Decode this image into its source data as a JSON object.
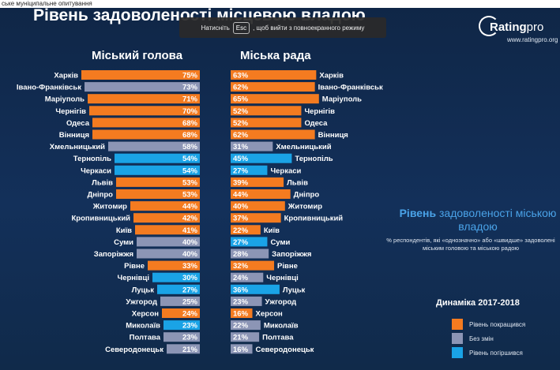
{
  "top_bar": {
    "text": "ське муніципальне опитування"
  },
  "page": {
    "title": "Рівень задоволеності місцевою владою"
  },
  "fullscreen_toast": {
    "before": "Натисніть",
    "key": "Esc",
    "after": ", щоб вийти з повноекранного режиму"
  },
  "logo": {
    "brand_bold": "Rating",
    "brand_light": "pro",
    "url": "www.ratingpro.org"
  },
  "colors": {
    "improved": "#f47b20",
    "no_change": "#8c95b5",
    "worsened": "#1aa3e6",
    "background": "#13305a"
  },
  "chart_data": {
    "type": "bar",
    "categories": [
      "Харків",
      "Івано-Франківськ",
      "Маріуполь",
      "Чернігів",
      "Одеса",
      "Вінниця",
      "Хмельницький",
      "Тернопіль",
      "Черкаси",
      "Львів",
      "Дніпро",
      "Житомир",
      "Кропивницький",
      "Київ",
      "Суми",
      "Запоріжжя",
      "Рівне",
      "Чернівці",
      "Луцьк",
      "Ужгород",
      "Херсон",
      "Миколаїв",
      "Полтава",
      "Северодонецьк"
    ],
    "series": [
      {
        "name": "Міський голова",
        "values": [
          75,
          73,
          71,
          70,
          68,
          68,
          58,
          54,
          54,
          53,
          53,
          44,
          42,
          41,
          40,
          40,
          33,
          30,
          27,
          25,
          24,
          23,
          23,
          21
        ],
        "labels": [
          "75%",
          "73%",
          "71%",
          "70%",
          "68%",
          "68%",
          "58%",
          "54%",
          "54%",
          "53%",
          "53%",
          "44%",
          "42%",
          "41%",
          "40%",
          "40%",
          "33%",
          "30%",
          "27%",
          "25%",
          "24%",
          "23%",
          "23%",
          "21%"
        ],
        "dynamics": [
          "improved",
          "no_change",
          "improved",
          "improved",
          "improved",
          "improved",
          "no_change",
          "worsened",
          "worsened",
          "improved",
          "improved",
          "improved",
          "improved",
          "improved",
          "no_change",
          "no_change",
          "improved",
          "worsened",
          "worsened",
          "no_change",
          "improved",
          "worsened",
          "no_change",
          "no_change"
        ]
      },
      {
        "name": "Міська рада",
        "values": [
          63,
          62,
          65,
          52,
          52,
          62,
          31,
          45,
          27,
          39,
          44,
          40,
          37,
          22,
          27,
          28,
          32,
          24,
          36,
          23,
          16,
          22,
          21,
          16
        ],
        "labels": [
          "63%",
          "62%",
          "65%",
          "52%",
          "52%",
          "62%",
          "31%",
          "45%",
          "27%",
          "39%",
          "44%",
          "40%",
          "37%",
          "22%",
          "27%",
          "28%",
          "32%",
          "24%",
          "36%",
          "23%",
          "16%",
          "22%",
          "21%",
          "16%"
        ],
        "dynamics": [
          "improved",
          "improved",
          "improved",
          "improved",
          "improved",
          "improved",
          "no_change",
          "worsened",
          "worsened",
          "improved",
          "improved",
          "improved",
          "improved",
          "improved",
          "worsened",
          "no_change",
          "improved",
          "no_change",
          "worsened",
          "no_change",
          "improved",
          "no_change",
          "no_change",
          "no_change"
        ]
      }
    ],
    "xlim": [
      0,
      100
    ],
    "grid": false
  },
  "side_panel": {
    "title_bold": "Рівень",
    "title_rest": " задоволеності міською владою",
    "note": "% респондентів, які «однозначно» або «швидше» задоволені міським головою та міською радою"
  },
  "legend": {
    "title": "Динаміка 2017-2018",
    "items": [
      {
        "key": "improved",
        "label": "Рівень покращився"
      },
      {
        "key": "no_change",
        "label": "Без змін"
      },
      {
        "key": "worsened",
        "label": "Рівень погіршився"
      }
    ]
  }
}
